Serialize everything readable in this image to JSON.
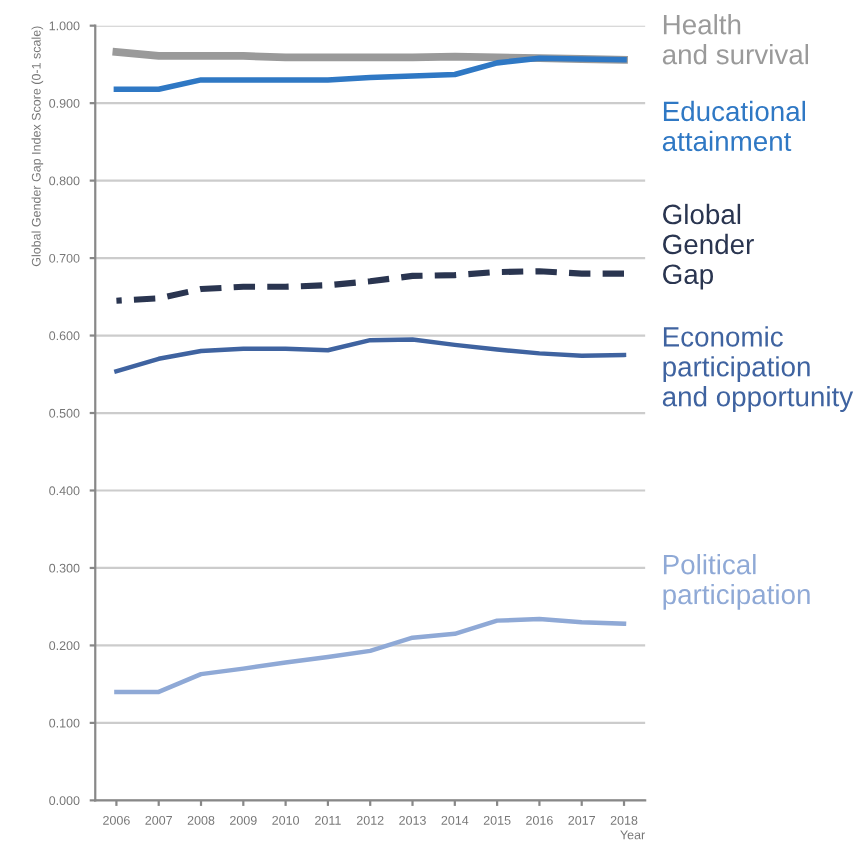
{
  "chart_data": {
    "type": "line",
    "xlabel": "Year",
    "ylabel": "Global Gender Gap Index Score (0-1 scale)",
    "x": [
      2006,
      2007,
      2008,
      2009,
      2010,
      2011,
      2012,
      2013,
      2014,
      2015,
      2016,
      2017,
      2018
    ],
    "xlim": [
      2005.5,
      2018.5
    ],
    "xticks": [
      2006,
      2007,
      2008,
      2009,
      2010,
      2011,
      2012,
      2013,
      2014,
      2015,
      2016,
      2017,
      2018
    ],
    "ylim": [
      0,
      1
    ],
    "yticks": [
      {
        "value": 0,
        "label": "0.000"
      },
      {
        "value": 0.1,
        "label": "0.100"
      },
      {
        "value": 0.2,
        "label": "0.200"
      },
      {
        "value": 0.3,
        "label": "0.300"
      },
      {
        "value": 0.4,
        "label": "0.400"
      },
      {
        "value": 0.5,
        "label": "0.500"
      },
      {
        "value": 0.6,
        "label": "0.600"
      },
      {
        "value": 0.7,
        "label": "0.700"
      },
      {
        "value": 0.8,
        "label": "0.800"
      },
      {
        "value": 0.9,
        "label": "0.900"
      },
      {
        "value": 1,
        "label": "1.000"
      }
    ],
    "grid": "y",
    "marker": "none",
    "series": [
      {
        "name": "Health\nand survival",
        "color": "#9a9a9a",
        "line_style": "solid",
        "values": [
          0.966,
          0.961,
          0.961,
          0.961,
          0.959,
          0.959,
          0.959,
          0.959,
          0.96,
          0.959,
          0.958,
          0.957,
          0.956
        ]
      },
      {
        "name": "Educational\nattainment",
        "color": "#2f78c4",
        "line_style": "solid",
        "values": [
          0.918,
          0.918,
          0.93,
          0.93,
          0.93,
          0.93,
          0.933,
          0.935,
          0.937,
          0.952,
          0.958,
          0.957,
          0.956
        ]
      },
      {
        "name": "Global\nGender\nGap",
        "color": "#2a3550",
        "line_style": "dashed",
        "values": [
          0.645,
          0.648,
          0.66,
          0.663,
          0.663,
          0.665,
          0.67,
          0.677,
          0.678,
          0.682,
          0.683,
          0.68,
          0.68
        ]
      },
      {
        "name": "Economic\nparticipation\nand opportunity",
        "color": "#3f63a0",
        "line_style": "solid",
        "values": [
          0.554,
          0.57,
          0.58,
          0.583,
          0.583,
          0.581,
          0.594,
          0.595,
          0.588,
          0.582,
          0.577,
          0.574,
          0.575
        ]
      },
      {
        "name": "Political\nparticipation",
        "color": "#8fa9d6",
        "line_style": "solid",
        "values": [
          0.14,
          0.14,
          0.163,
          0.17,
          0.178,
          0.185,
          0.193,
          0.21,
          0.215,
          0.232,
          0.234,
          0.23,
          0.228
        ]
      }
    ]
  }
}
